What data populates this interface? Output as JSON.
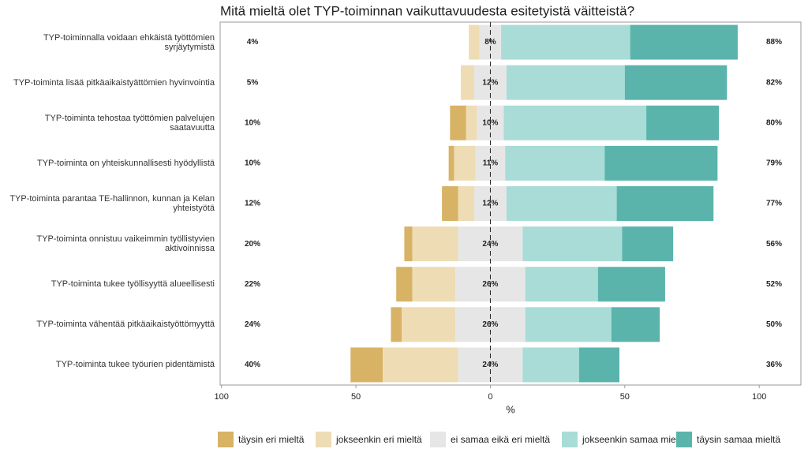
{
  "chart_data": {
    "type": "diverging_stacked_bar",
    "title": "Mitä mieltä olet TYP-toiminnan vaikuttavuudesta esitetyistä väitteistä?",
    "x_label": "%",
    "categories": [
      "TYP-toiminnalla voidaan ehkäistä työttömien syrjäytymistä",
      "TYP-toiminta lisää pitkäaikaistyättömien hyvinvointia",
      "TYP-toiminta tehostaa työttömien palvelujen saatavuutta",
      "TYP-toiminta on yhteiskunnallisesti hyödyllistä",
      "TYP-toiminta parantaa TE-hallinnon, kunnan ja Kelan yhteistyötä",
      "TYP-toiminta onnistuu vaikeimmin työllistyvien aktivoinnissa",
      "TYP-toiminta tukee työllisyyttä alueellisesti",
      "TYP-toiminta vähentää pitkäaikaistyöttömyyttä",
      "TYP-toiminta tukee työurien pidentämistä"
    ],
    "series": [
      {
        "name": "täysin eri mieltä",
        "color": "#d8b365",
        "values": [
          0,
          0,
          6,
          2,
          6,
          3,
          6,
          4,
          12
        ]
      },
      {
        "name": "jokseenkin eri mieltä",
        "color": "#eedcb4",
        "values": [
          4,
          5,
          4,
          8,
          6,
          17,
          16,
          20,
          28
        ]
      },
      {
        "name": "ei samaa eikä eri mieltä",
        "color": "#e6e6e6",
        "values": [
          8,
          12,
          10,
          11,
          12,
          24,
          26,
          26,
          24
        ],
        "value_labels": [
          "8%",
          "12%",
          "10%",
          "11%",
          "12%",
          "24%",
          "26%",
          "26%",
          "24%"
        ]
      },
      {
        "name": "jokseenkin samaa mieltä",
        "color": "#a9dcd6",
        "values": [
          48,
          44,
          53,
          37,
          41,
          37,
          27,
          32,
          21
        ]
      },
      {
        "name": "täysin samaa mieltä",
        "color": "#5ab4ac",
        "values": [
          40,
          38,
          27,
          42,
          36,
          19,
          25,
          18,
          15
        ]
      }
    ],
    "disagree_total": {
      "values": [
        4,
        5,
        10,
        10,
        12,
        20,
        22,
        24,
        40
      ],
      "value_labels": [
        "4%",
        "5%",
        "10%",
        "10%",
        "12%",
        "20%",
        "22%",
        "24%",
        "40%"
      ]
    },
    "agree_total": {
      "values": [
        88,
        82,
        80,
        79,
        77,
        56,
        52,
        50,
        36
      ],
      "value_labels": [
        "88%",
        "82%",
        "80%",
        "79%",
        "77%",
        "56%",
        "52%",
        "50%",
        "36%"
      ]
    },
    "xlim": [
      -100.5,
      115.5
    ],
    "xticks": [
      {
        "value": -100,
        "label": "100"
      },
      {
        "value": -50,
        "label": "50"
      },
      0,
      50,
      100
    ],
    "legend": "bottom"
  }
}
